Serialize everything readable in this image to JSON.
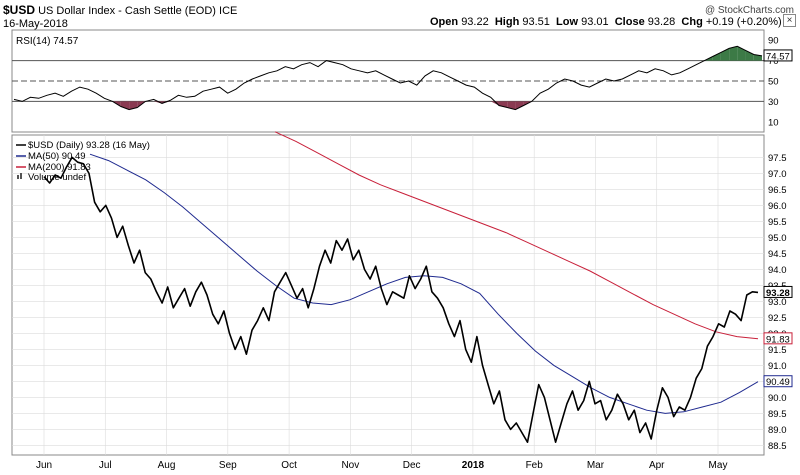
{
  "header": {
    "symbol": "$USD",
    "name": "US Dollar Index - Cash Settle (EOD)",
    "exchange": "ICE",
    "date": "16-May-2018",
    "watermark": "@ StockCharts.com",
    "open_label": "Open",
    "open": "93.22",
    "high_label": "High",
    "high": "93.51",
    "low_label": "Low",
    "low": "93.01",
    "close_label": "Close",
    "close": "93.28",
    "chg_label": "Chg",
    "chg": "+0.19 (+0.20%)"
  },
  "colors": {
    "price": "#000000",
    "ma50": "#1f2a8f",
    "ma200": "#c8203a",
    "rsi_up_fill": "#3c7a46",
    "rsi_down_fill": "#8a3a52",
    "grid": "#dcdcdc"
  },
  "chart_data": [
    {
      "type": "line",
      "title": "RSI(14) 74.57",
      "series": [
        {
          "name": "RSI(14)",
          "last": 74.57,
          "values": [
            32,
            30,
            34,
            33,
            36,
            38,
            35,
            40,
            44,
            42,
            38,
            33,
            30,
            25,
            22,
            24,
            30,
            32,
            28,
            31,
            36,
            34,
            35,
            40,
            42,
            44,
            38,
            42,
            48,
            52,
            55,
            58,
            60,
            64,
            62,
            66,
            68,
            64,
            70,
            68,
            66,
            62,
            60,
            58,
            60,
            56,
            52,
            48,
            50,
            46,
            55,
            60,
            58,
            54,
            50,
            46,
            44,
            38,
            34,
            26,
            24,
            22,
            26,
            30,
            38,
            42,
            48,
            52,
            50,
            46,
            44,
            48,
            52,
            50,
            52,
            56,
            60,
            58,
            62,
            60,
            56,
            58,
            62,
            66,
            70,
            74,
            78,
            82,
            84,
            80,
            76,
            74.57
          ]
        }
      ],
      "ylim": [
        0,
        100
      ],
      "reference_lines": [
        30,
        50,
        70
      ],
      "tick_labels": [
        "90",
        "70",
        "50",
        "30",
        "10"
      ],
      "last_value_tag": "74.57"
    },
    {
      "type": "line",
      "legend": [
        "$USD (Daily) 93.28 (16 May)",
        "MA(50) 90.49",
        "MA(200) 91.83",
        "Volume undef"
      ],
      "x_labels": [
        "Jun",
        "Jul",
        "Aug",
        "Sep",
        "Oct",
        "Nov",
        "Dec",
        "2018",
        "Feb",
        "Mar",
        "Apr",
        "May"
      ],
      "y_ticks": [
        "97.5",
        "97.0",
        "96.5",
        "96.0",
        "95.5",
        "95.0",
        "94.5",
        "94.0",
        "93.5",
        "93.0",
        "92.5",
        "92.0",
        "91.5",
        "91.0",
        "90.5",
        "90.0",
        "89.5",
        "89.0",
        "88.5"
      ],
      "ylim": [
        88.2,
        98.2
      ],
      "series": [
        {
          "name": "$USD (Daily)",
          "values": [
            96.9,
            96.7,
            96.95,
            96.85,
            97.2,
            97.5,
            97.35,
            97.3,
            97.0,
            96.1,
            95.8,
            96.0,
            95.6,
            95.0,
            95.35,
            94.75,
            94.2,
            94.6,
            93.9,
            93.7,
            93.3,
            92.95,
            93.45,
            92.8,
            93.1,
            93.4,
            92.85,
            93.3,
            93.6,
            93.2,
            92.6,
            92.3,
            92.7,
            92.0,
            91.5,
            91.9,
            91.35,
            92.1,
            92.4,
            92.8,
            92.4,
            93.3,
            93.6,
            93.9,
            93.5,
            93.1,
            93.4,
            92.8,
            93.4,
            94.1,
            94.6,
            94.2,
            94.9,
            94.6,
            94.95,
            94.3,
            94.6,
            94.0,
            93.7,
            94.1,
            93.4,
            92.9,
            93.3,
            93.2,
            93.1,
            93.8,
            93.4,
            93.7,
            94.1,
            93.3,
            93.1,
            92.8,
            92.3,
            91.9,
            92.4,
            91.5,
            91.1,
            91.9,
            91.0,
            90.4,
            89.8,
            90.2,
            89.3,
            89.0,
            89.2,
            88.9,
            88.6,
            89.5,
            90.4,
            90.0,
            89.3,
            88.6,
            89.2,
            89.8,
            90.2,
            89.6,
            89.9,
            90.5,
            89.8,
            89.9,
            89.3,
            89.6,
            90.1,
            89.8,
            89.3,
            89.6,
            88.9,
            89.2,
            88.7,
            89.6,
            90.3,
            90.0,
            89.4,
            89.7,
            89.6,
            90.0,
            90.6,
            90.9,
            91.6,
            91.9,
            92.3,
            92.2,
            92.7,
            92.6,
            92.4,
            93.2,
            93.3,
            93.28
          ]
        },
        {
          "name": "MA(50)",
          "last": 90.49,
          "values": [
            97.6,
            97.4,
            97.1,
            96.8,
            96.4,
            95.95,
            95.45,
            94.95,
            94.45,
            93.95,
            93.5,
            93.1,
            92.95,
            92.9,
            93.05,
            93.3,
            93.55,
            93.75,
            93.8,
            93.75,
            93.55,
            93.25,
            92.6,
            92.0,
            91.45,
            91.0,
            90.65,
            90.3,
            90.0,
            89.8,
            89.6,
            89.5,
            89.55,
            89.7,
            89.85,
            90.15,
            90.49
          ]
        },
        {
          "name": "MA(200)",
          "last": 91.83,
          "values": [
            98.3,
            98.0,
            97.65,
            97.3,
            96.95,
            96.65,
            96.4,
            96.15,
            95.9,
            95.65,
            95.4,
            95.15,
            94.85,
            94.55,
            94.25,
            93.95,
            93.6,
            93.25,
            92.9,
            92.6,
            92.3,
            92.05,
            91.9,
            91.83
          ]
        }
      ],
      "last_value_tags": [
        "93.28",
        "91.83",
        "90.49"
      ]
    }
  ]
}
